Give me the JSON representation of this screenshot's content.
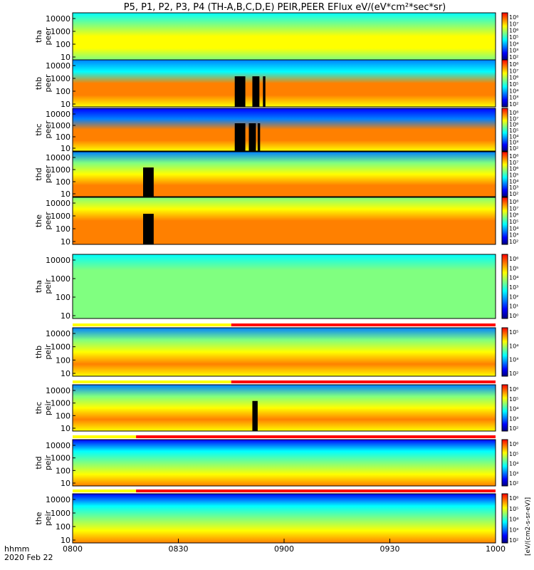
{
  "title": "P5, P1, P2, P3, P4 (TH-A,B,C,D,E) PEIR,PEER EFlux eV/(eV*cm²*sec*sr)",
  "colors": {
    "palette": [
      "#000080",
      "#0000ff",
      "#0080ff",
      "#00ffff",
      "#80ff80",
      "#ffff00",
      "#ff8000",
      "#ff0000"
    ],
    "black": "#000000",
    "yellow_bar": "#ffff00",
    "red_bar": "#ff0000",
    "white": "#ffffff"
  },
  "chart_data": {
    "type": "heatmap",
    "title": "P5, P1, P2, P3, P4 (TH-A,B,C,D,E) PEIR,PEER EFlux eV/(eV*cm²*sec*sr)",
    "x_axis": {
      "label_line1": "hhmm",
      "label_line2": "2020 Feb 22",
      "ticks": [
        "0800",
        "0830",
        "0900",
        "0930",
        "1000"
      ],
      "range_minutes": [
        0,
        120
      ]
    },
    "colorbar_label": "[eV/(cm2-s-sr-eV)]",
    "panels": [
      {
        "ylabel_1": "tha",
        "ylabel_2": "peer",
        "yticks": [
          "10000",
          "1000",
          "100",
          "10"
        ],
        "cb_ticks": [
          "10⁸",
          "10⁷",
          "10⁶",
          "10⁵",
          "10⁴",
          "10³",
          "10²"
        ],
        "profile": [
          0.45,
          0.55,
          0.7,
          0.65,
          0.5
        ],
        "gaps": [],
        "mode_bar": null
      },
      {
        "ylabel_1": "thb",
        "ylabel_2": "peer",
        "yticks": [
          "10000",
          "1000",
          "100",
          "10"
        ],
        "cb_ticks": [
          "10⁸",
          "10⁷",
          "10⁶",
          "10⁵",
          "10⁴",
          "10³",
          "10²"
        ],
        "profile": [
          0.3,
          0.4,
          0.8,
          0.85,
          0.75
        ],
        "gaps": [
          [
            46,
            49
          ],
          [
            51,
            53
          ],
          [
            54,
            54.7
          ]
        ],
        "mode_bar": null
      },
      {
        "ylabel_1": "thc",
        "ylabel_2": "peer",
        "yticks": [
          "10000",
          "1000",
          "100",
          "10"
        ],
        "cb_ticks": [
          "10⁸",
          "10⁷",
          "10⁶",
          "10⁵",
          "10⁴",
          "10³",
          "10²"
        ],
        "profile": [
          0.15,
          0.3,
          0.8,
          0.85,
          0.75
        ],
        "gaps": [
          [
            46,
            49
          ],
          [
            50,
            52
          ],
          [
            52.5,
            53.2
          ]
        ],
        "mode_bar": null
      },
      {
        "ylabel_1": "thd",
        "ylabel_2": "peer",
        "yticks": [
          "10000",
          "1000",
          "100",
          "10"
        ],
        "cb_ticks": [
          "10⁸",
          "10⁷",
          "10⁶",
          "10⁵",
          "10⁴",
          "10³",
          "10²"
        ],
        "profile": [
          0.3,
          0.5,
          0.7,
          0.8,
          0.85
        ],
        "gaps": [
          [
            20,
            23
          ]
        ],
        "mode_bar": null
      },
      {
        "ylabel_1": "the",
        "ylabel_2": "peer",
        "yticks": [
          "10000",
          "1000",
          "100",
          "10"
        ],
        "cb_ticks": [
          "10⁸",
          "10⁷",
          "10⁶",
          "10⁵",
          "10⁴",
          "10³",
          "10²"
        ],
        "profile": [
          0.6,
          0.75,
          0.88,
          0.9,
          0.9
        ],
        "gaps": [
          [
            20,
            23
          ]
        ],
        "mode_bar": null
      },
      {
        "ylabel_1": "tha",
        "ylabel_2": "peir",
        "yticks": [
          "10000",
          "1000",
          "100",
          "10"
        ],
        "cb_ticks": [
          "10⁶",
          "10⁵",
          "10⁴",
          "10³",
          "10²",
          "10¹",
          "10⁰"
        ],
        "profile": [
          0.45,
          0.55,
          0.6,
          0.62,
          0.6
        ],
        "gaps": [],
        "mode_bar": null
      },
      {
        "ylabel_1": "thb",
        "ylabel_2": "peir",
        "yticks": [
          "10000",
          "1000",
          "100",
          "10"
        ],
        "cb_ticks": [
          "10⁵",
          "10⁴",
          "10³",
          "10²"
        ],
        "profile": [
          0.35,
          0.6,
          0.75,
          0.85,
          0.75
        ],
        "gaps": [],
        "mode_bar": 45
      },
      {
        "ylabel_1": "thc",
        "ylabel_2": "peir",
        "yticks": [
          "10000",
          "1000",
          "100",
          "10"
        ],
        "cb_ticks": [
          "10⁶",
          "10⁵",
          "10⁴",
          "10³",
          "10²"
        ],
        "profile": [
          0.3,
          0.55,
          0.75,
          0.85,
          0.75
        ],
        "gaps": [
          [
            51,
            52.5
          ]
        ],
        "mode_bar": 45
      },
      {
        "ylabel_1": "thd",
        "ylabel_2": "peir",
        "yticks": [
          "10000",
          "1000",
          "100",
          "10"
        ],
        "cb_ticks": [
          "10⁶",
          "10⁵",
          "10⁴",
          "10³",
          "10²"
        ],
        "profile": [
          0.2,
          0.4,
          0.6,
          0.75,
          0.9
        ],
        "gaps": [],
        "mode_bar": 18
      },
      {
        "ylabel_1": "the",
        "ylabel_2": "peir",
        "yticks": [
          "10000",
          "1000",
          "100",
          "10"
        ],
        "cb_ticks": [
          "10⁶",
          "10⁵",
          "10⁴",
          "10³",
          "10²"
        ],
        "profile": [
          0.2,
          0.4,
          0.6,
          0.75,
          0.9
        ],
        "gaps": [],
        "mode_bar": 18
      }
    ]
  }
}
